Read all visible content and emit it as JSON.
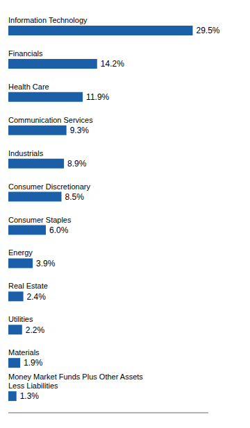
{
  "chart_data": {
    "type": "bar",
    "orientation": "horizontal",
    "categories": [
      "Information Technology",
      "Financials",
      "Health Care",
      "Communication Services",
      "Industrials",
      "Consumer Discretionary",
      "Consumer Staples",
      "Energy",
      "Real Estate",
      "Utilities",
      "Materials",
      "Money Market Funds Plus Other Assets\nLess Liabilities"
    ],
    "values": [
      29.5,
      14.2,
      11.9,
      9.3,
      8.9,
      8.5,
      6.0,
      3.9,
      2.4,
      2.2,
      1.9,
      1.3
    ],
    "value_labels": [
      "29.5%",
      "14.2%",
      "11.9%",
      "9.3%",
      "8.9%",
      "8.5%",
      "6.0%",
      "3.9%",
      "2.4%",
      "2.2%",
      "1.9%",
      "1.3%"
    ],
    "color": "#1a5fa8",
    "xlim": [
      0,
      32
    ],
    "data_labels": true,
    "tick_labels": false,
    "grid": false
  }
}
